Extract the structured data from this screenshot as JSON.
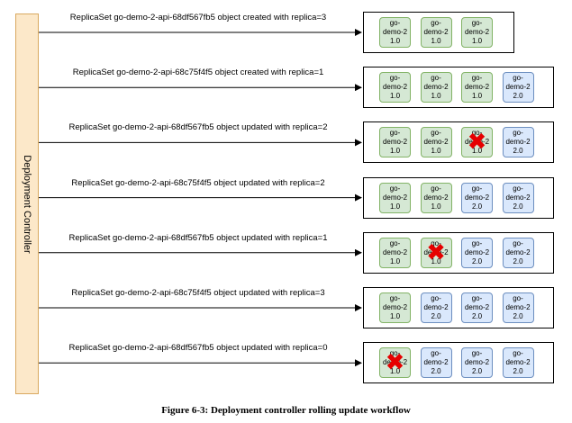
{
  "controller_label": "Deployment Controller",
  "caption": "Figure 6-3: Deployment controller rolling update workflow",
  "colors": {
    "v1_fill": "#d5e8d4",
    "v2_fill": "#dae8fc",
    "controller_fill": "#fce8c9",
    "cross": "#e60000"
  },
  "steps": [
    {
      "message": "ReplicaSet go-demo-2-api-68df567fb5 object created with replica=3",
      "pods": [
        {
          "lines": [
            "go-",
            "demo-2",
            "1.0"
          ],
          "version": "1.0",
          "terminated": false
        },
        {
          "lines": [
            "go-",
            "demo-2",
            "1.0"
          ],
          "version": "1.0",
          "terminated": false
        },
        {
          "lines": [
            "go-",
            "demo-2",
            "1.0"
          ],
          "version": "1.0",
          "terminated": false
        }
      ]
    },
    {
      "message": "ReplicaSet go-demo-2-api-68c75f4f5 object created with replica=1",
      "pods": [
        {
          "lines": [
            "go-",
            "demo-2",
            "1.0"
          ],
          "version": "1.0",
          "terminated": false
        },
        {
          "lines": [
            "go-",
            "demo-2",
            "1.0"
          ],
          "version": "1.0",
          "terminated": false
        },
        {
          "lines": [
            "go-",
            "demo-2",
            "1.0"
          ],
          "version": "1.0",
          "terminated": false
        },
        {
          "lines": [
            "go-",
            "demo-2",
            "2.0"
          ],
          "version": "2.0",
          "terminated": false
        }
      ]
    },
    {
      "message": "ReplicaSet go-demo-2-api-68df567fb5 object updated with replica=2",
      "pods": [
        {
          "lines": [
            "go-",
            "demo-2",
            "1.0"
          ],
          "version": "1.0",
          "terminated": false
        },
        {
          "lines": [
            "go-",
            "demo-2",
            "1.0"
          ],
          "version": "1.0",
          "terminated": false
        },
        {
          "lines": [
            "go-",
            "demo-2",
            "1.0"
          ],
          "version": "1.0",
          "terminated": true
        },
        {
          "lines": [
            "go-",
            "demo-2",
            "2.0"
          ],
          "version": "2.0",
          "terminated": false
        }
      ]
    },
    {
      "message": "ReplicaSet go-demo-2-api-68c75f4f5 object updated with replica=2",
      "pods": [
        {
          "lines": [
            "go-",
            "demo-2",
            "1.0"
          ],
          "version": "1.0",
          "terminated": false
        },
        {
          "lines": [
            "go-",
            "demo-2",
            "1.0"
          ],
          "version": "1.0",
          "terminated": false
        },
        {
          "lines": [
            "go-",
            "demo-2",
            "2.0"
          ],
          "version": "2.0",
          "terminated": false
        },
        {
          "lines": [
            "go-",
            "demo-2",
            "2.0"
          ],
          "version": "2.0",
          "terminated": false
        }
      ]
    },
    {
      "message": "ReplicaSet go-demo-2-api-68df567fb5 object updated with replica=1",
      "pods": [
        {
          "lines": [
            "go-",
            "demo-2",
            "1.0"
          ],
          "version": "1.0",
          "terminated": false
        },
        {
          "lines": [
            "go-",
            "demo-2",
            "1.0"
          ],
          "version": "1.0",
          "terminated": true
        },
        {
          "lines": [
            "go-",
            "demo-2",
            "2.0"
          ],
          "version": "2.0",
          "terminated": false
        },
        {
          "lines": [
            "go-",
            "demo-2",
            "2.0"
          ],
          "version": "2.0",
          "terminated": false
        }
      ]
    },
    {
      "message": "ReplicaSet go-demo-2-api-68c75f4f5 object updated with replica=3",
      "pods": [
        {
          "lines": [
            "go-",
            "demo-2",
            "1.0"
          ],
          "version": "1.0",
          "terminated": false
        },
        {
          "lines": [
            "go-",
            "demo-2",
            "2.0"
          ],
          "version": "2.0",
          "terminated": false
        },
        {
          "lines": [
            "go-",
            "demo-2",
            "2.0"
          ],
          "version": "2.0",
          "terminated": false
        },
        {
          "lines": [
            "go-",
            "demo-2",
            "2.0"
          ],
          "version": "2.0",
          "terminated": false
        }
      ]
    },
    {
      "message": "ReplicaSet go-demo-2-api-68df567fb5 object updated with replica=0",
      "pods": [
        {
          "lines": [
            "go-",
            "demo-2",
            "1.0"
          ],
          "version": "1.0",
          "terminated": true
        },
        {
          "lines": [
            "go-",
            "demo-2",
            "2.0"
          ],
          "version": "2.0",
          "terminated": false
        },
        {
          "lines": [
            "go-",
            "demo-2",
            "2.0"
          ],
          "version": "2.0",
          "terminated": false
        },
        {
          "lines": [
            "go-",
            "demo-2",
            "2.0"
          ],
          "version": "2.0",
          "terminated": false
        }
      ]
    }
  ]
}
